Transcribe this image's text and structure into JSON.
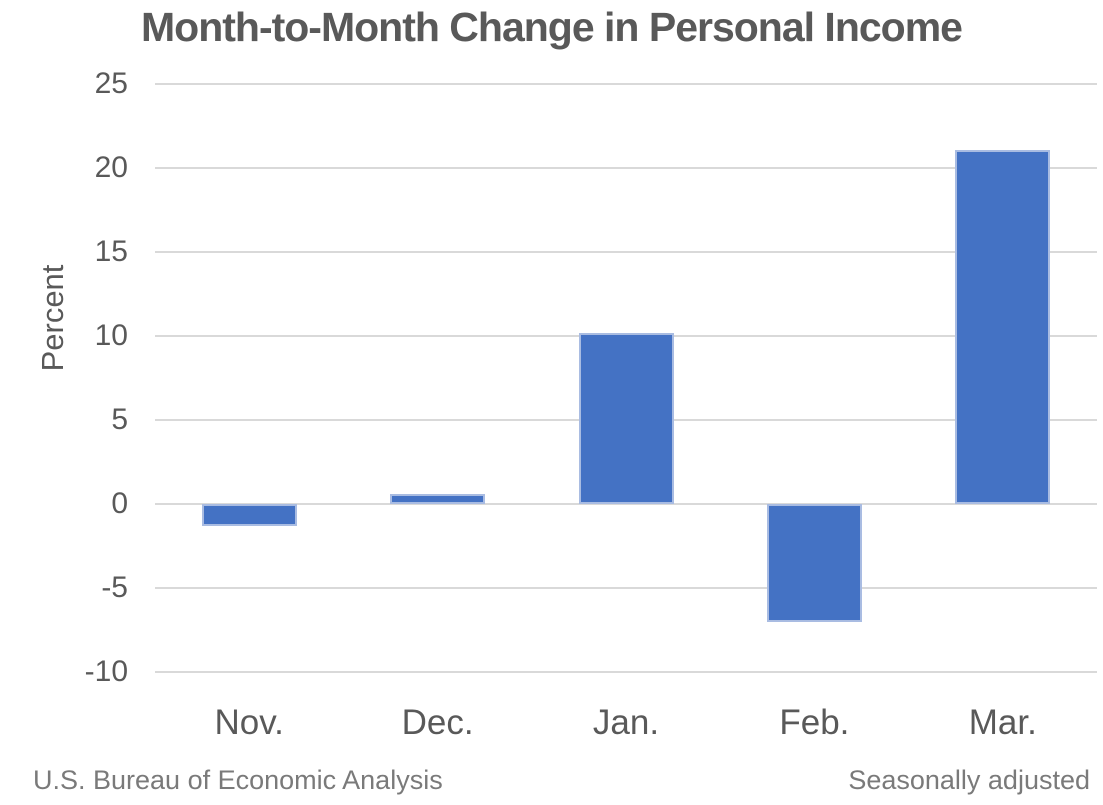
{
  "title": "Month-to-Month Change in Personal Income",
  "footer": {
    "left": "U.S. Bureau of Economic Analysis",
    "right": "Seasonally adjusted"
  },
  "colors": {
    "bar_fill": "#4472C4",
    "bar_border": "#A9BCE2",
    "gridline": "#D9D9D9",
    "axis_text": "#595959",
    "title_text": "#595959",
    "footnote_text": "#7A7A7A",
    "background": "#FFFFFF"
  },
  "chart_data": {
    "type": "bar",
    "title": "Month-to-Month Change in Personal Income",
    "categories": [
      "Nov.",
      "Dec.",
      "Jan.",
      "Feb.",
      "Mar."
    ],
    "values": [
      -1.3,
      0.6,
      10.2,
      -7.0,
      21.1
    ],
    "xlabel": "",
    "ylabel": "Percent",
    "ylim": [
      -10,
      25
    ],
    "yticks": [
      25,
      20,
      15,
      10,
      5,
      0,
      -5,
      -10
    ],
    "grid": true,
    "legend": false,
    "source_note": "U.S. Bureau of Economic Analysis",
    "adjustment_note": "Seasonally adjusted"
  }
}
